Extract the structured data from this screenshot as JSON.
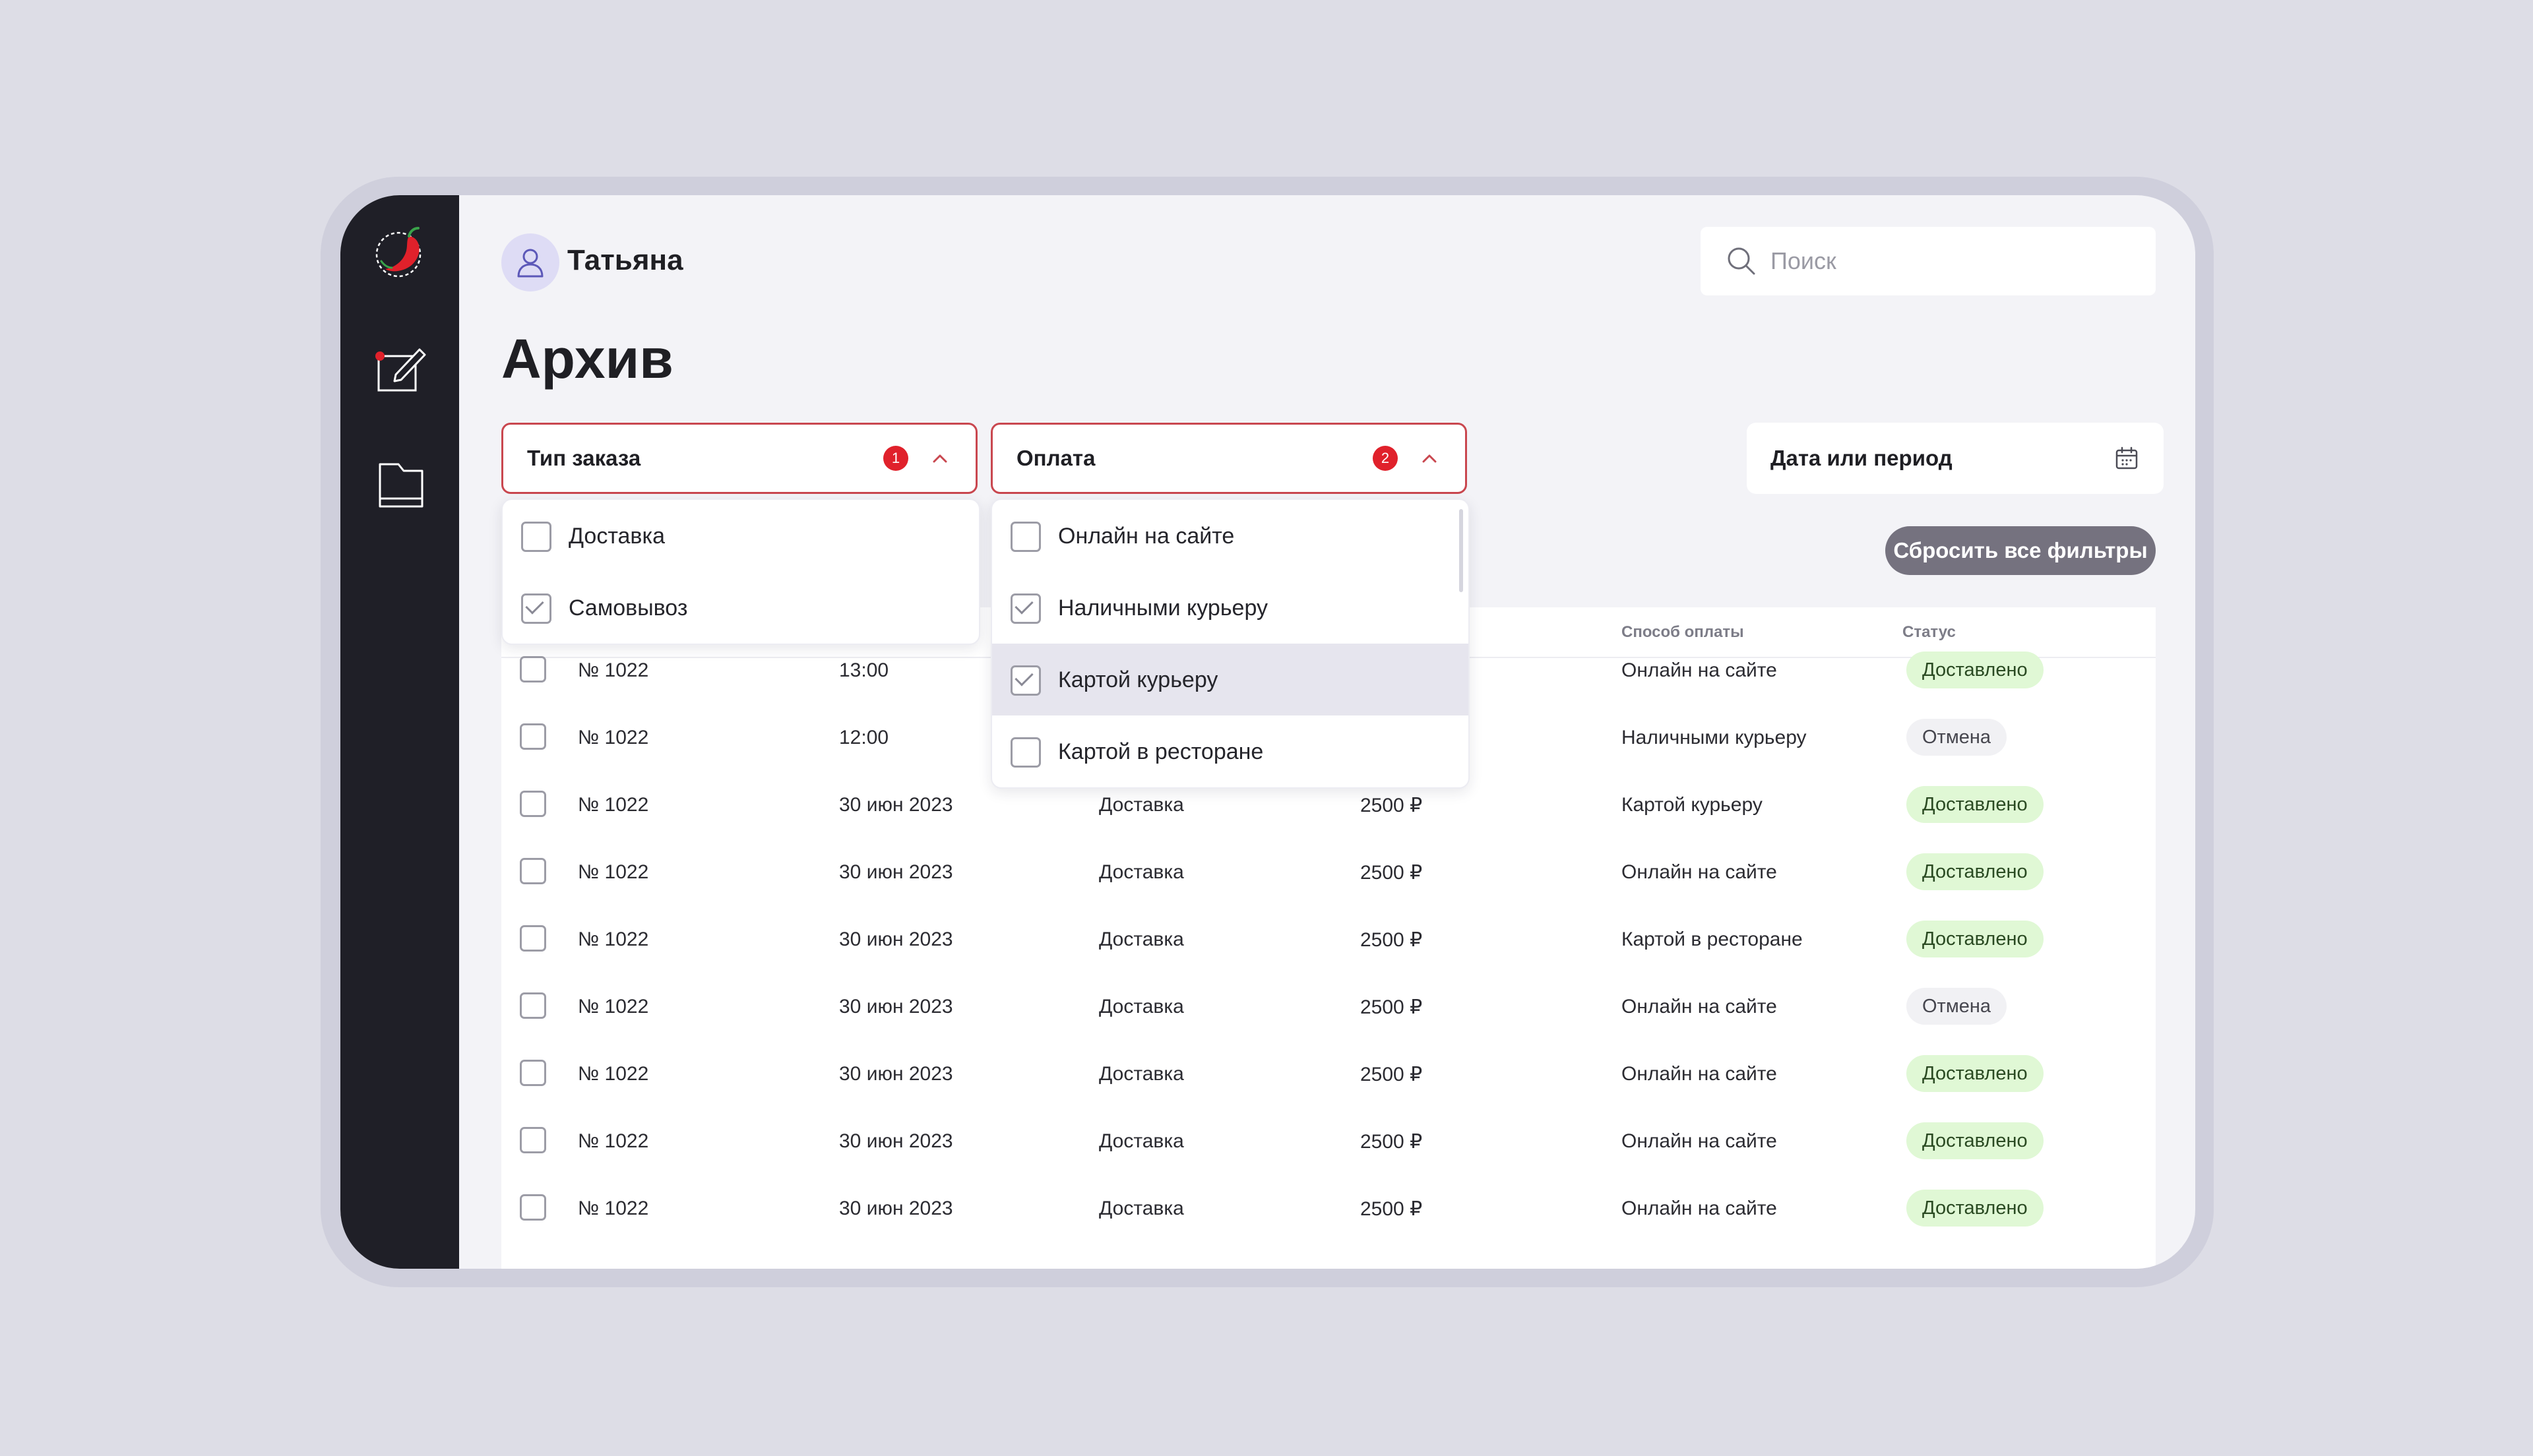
{
  "user": {
    "name": "Татьяна"
  },
  "search": {
    "placeholder": "Поиск"
  },
  "page": {
    "title": "Архив"
  },
  "filters": {
    "order_type": {
      "label": "Тип заказа",
      "badge": "1"
    },
    "payment": {
      "label": "Оплата",
      "badge": "2"
    },
    "date": {
      "label": "Дата или период"
    },
    "reset_label": "Сбросить все фильтры"
  },
  "order_type_options": [
    {
      "label": "Доставка",
      "checked": false
    },
    {
      "label": "Самовывоз",
      "checked": true
    }
  ],
  "payment_options": [
    {
      "label": "Онлайн на сайте",
      "checked": false
    },
    {
      "label": "Наличными курьеру",
      "checked": true
    },
    {
      "label": "Картой курьеру",
      "checked": true
    },
    {
      "label": "Картой в ресторане",
      "checked": false
    }
  ],
  "table": {
    "columns": {
      "payment_method": "Способ оплаты",
      "status": "Статус"
    },
    "rows": [
      {
        "number": "№ 1022",
        "date": "13:00",
        "type": "",
        "amount": "",
        "payment": "Онлайн на сайте",
        "status": "Доставлено",
        "status_kind": "ok"
      },
      {
        "number": "№ 1022",
        "date": "12:00",
        "type": "",
        "amount": "",
        "payment": "Наличными курьеру",
        "status": "Отмена",
        "status_kind": "cancel"
      },
      {
        "number": "№ 1022",
        "date": "30 июн 2023",
        "type": "Доставка",
        "amount": "2500 ₽",
        "payment": "Картой курьеру",
        "status": "Доставлено",
        "status_kind": "ok"
      },
      {
        "number": "№ 1022",
        "date": "30 июн 2023",
        "type": "Доставка",
        "amount": "2500 ₽",
        "payment": "Онлайн на сайте",
        "status": "Доставлено",
        "status_kind": "ok"
      },
      {
        "number": "№ 1022",
        "date": "30 июн 2023",
        "type": "Доставка",
        "amount": "2500 ₽",
        "payment": "Картой в ресторане",
        "status": "Доставлено",
        "status_kind": "ok"
      },
      {
        "number": "№ 1022",
        "date": "30 июн 2023",
        "type": "Доставка",
        "amount": "2500 ₽",
        "payment": "Онлайн на сайте",
        "status": "Отмена",
        "status_kind": "cancel"
      },
      {
        "number": "№ 1022",
        "date": "30 июн 2023",
        "type": "Доставка",
        "amount": "2500 ₽",
        "payment": "Онлайн на сайте",
        "status": "Доставлено",
        "status_kind": "ok"
      },
      {
        "number": "№ 1022",
        "date": "30 июн 2023",
        "type": "Доставка",
        "amount": "2500 ₽",
        "payment": "Онлайн на сайте",
        "status": "Доставлено",
        "status_kind": "ok"
      },
      {
        "number": "№ 1022",
        "date": "30 июн 2023",
        "type": "Доставка",
        "amount": "2500 ₽",
        "payment": "Онлайн на сайте",
        "status": "Доставлено",
        "status_kind": "ok"
      }
    ]
  },
  "colors": {
    "accent_red": "#e0212b",
    "sidebar": "#1f1f27",
    "status_ok_bg": "#e0f8d5",
    "status_cancel_bg": "#f1f1f4"
  },
  "icons": {
    "logo": "chili-logo-icon",
    "nav": [
      "edit-icon",
      "folder-icon"
    ],
    "user": "user-icon",
    "search": "search-icon",
    "calendar": "calendar-icon"
  }
}
